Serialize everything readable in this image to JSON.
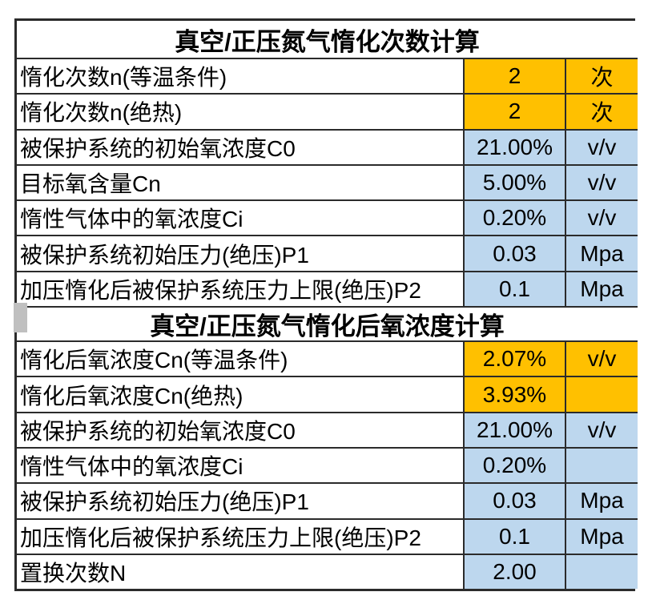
{
  "table": {
    "colors": {
      "orange": "#FFC000",
      "blue": "#BDD7EE",
      "border": "#2b2b2b",
      "gray_marker": "#C0C0C0"
    },
    "sections": [
      {
        "title": "真空/正压氮气惰化次数计算",
        "rows": [
          {
            "label": "惰化次数n(等温条件)",
            "value": "2",
            "unit": "次",
            "highlight": "orange"
          },
          {
            "label": "惰化次数n(绝热)",
            "value": "2",
            "unit": "次",
            "highlight": "orange"
          },
          {
            "label": "被保护系统的初始氧浓度C0",
            "value": "21.00%",
            "unit": "v/v",
            "highlight": "blue"
          },
          {
            "label": "目标氧含量Cn",
            "value": "5.00%",
            "unit": "v/v",
            "highlight": "blue"
          },
          {
            "label": "惰性气体中的氧浓度Ci",
            "value": "0.20%",
            "unit": "v/v",
            "highlight": "blue"
          },
          {
            "label": "被保护系统初始压力(绝压)P1",
            "value": "0.03",
            "unit": "Mpa",
            "highlight": "blue"
          },
          {
            "label": "加压惰化后被保护系统压力上限(绝压)P2",
            "value": "0.1",
            "unit": "Mpa",
            "highlight": "blue"
          }
        ]
      },
      {
        "title": "真空/正压氮气惰化后氧浓度计算",
        "rows": [
          {
            "label": "惰化后氧浓度Cn(等温条件)",
            "value": "2.07%",
            "unit": "v/v",
            "highlight": "orange"
          },
          {
            "label": "惰化后氧浓度Cn(绝热)",
            "value": "3.93%",
            "unit": "",
            "highlight": "orange"
          },
          {
            "label": "被保护系统的初始氧浓度C0",
            "value": "21.00%",
            "unit": "v/v",
            "highlight": "blue"
          },
          {
            "label": "惰性气体中的氧浓度Ci",
            "value": "0.20%",
            "unit": "",
            "highlight": "blue"
          },
          {
            "label": "被保护系统初始压力(绝压)P1",
            "value": "0.03",
            "unit": "Mpa",
            "highlight": "blue"
          },
          {
            "label": "加压惰化后被保护系统压力上限(绝压)P2",
            "value": "0.1",
            "unit": "Mpa",
            "highlight": "blue"
          },
          {
            "label": "置换次数N",
            "value": "2.00",
            "unit": "",
            "highlight": "blue"
          }
        ]
      }
    ]
  }
}
